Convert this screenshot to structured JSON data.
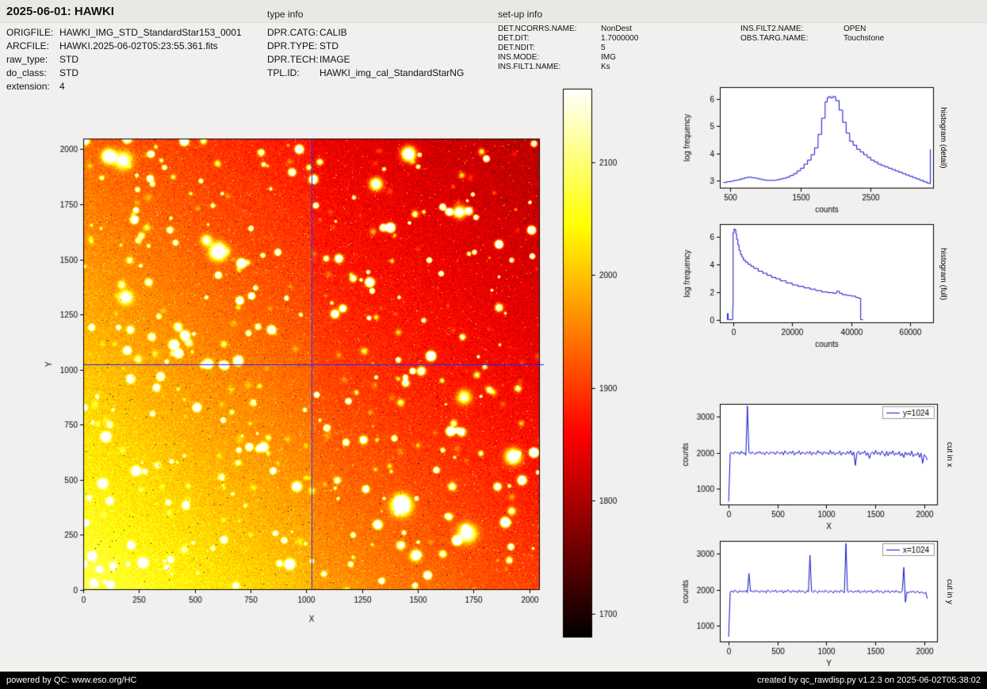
{
  "header": {
    "title": "2025-06-01: HAWKI",
    "type_info_label": "type info",
    "setup_info_label": "set-up info"
  },
  "file_info": {
    "rows": [
      {
        "label": "ORIGFILE:",
        "value": "HAWKI_IMG_STD_StandardStar153_0001"
      },
      {
        "label": "ARCFILE:",
        "value": "HAWKI.2025-06-02T05:23:55.361.fits"
      },
      {
        "label": "raw_type:",
        "value": "STD"
      },
      {
        "label": "do_class:",
        "value": "STD"
      },
      {
        "label": "extension:",
        "value": "4"
      }
    ]
  },
  "type_info": {
    "rows": [
      {
        "label": "DPR.CATG:",
        "value": "CALIB"
      },
      {
        "label": "DPR.TYPE:",
        "value": "STD"
      },
      {
        "label": "DPR.TECH:",
        "value": "IMAGE"
      },
      {
        "label": "TPL.ID:",
        "value": "HAWKI_img_cal_StandardStarNG"
      }
    ]
  },
  "setup_info": {
    "col1": [
      {
        "label": "DET.NCORRS.NAME:",
        "value": "NonDest"
      },
      {
        "label": "DET.DIT:",
        "value": "1.7000000"
      },
      {
        "label": "DET.NDIT:",
        "value": "5"
      },
      {
        "label": "INS.MODE:",
        "value": "IMG"
      },
      {
        "label": "INS.FILT1.NAME:",
        "value": "Ks"
      }
    ],
    "col2": [
      {
        "label": "INS.FILT2.NAME:",
        "value": "OPEN"
      },
      {
        "label": "OBS.TARG.NAME:",
        "value": "Touchstone"
      }
    ]
  },
  "footer": {
    "left": "powered by QC: www.eso.org/HC",
    "right": "created by qc_rawdisp.py v1.2.3 on 2025-06-02T05:38:02"
  },
  "chart_data": [
    {
      "id": "main_image",
      "type": "heatmap",
      "xlabel": "X",
      "ylabel": "Y",
      "xlim": [
        0,
        2048
      ],
      "ylim": [
        0,
        2048
      ],
      "xticks": [
        0,
        250,
        500,
        750,
        1000,
        1250,
        1500,
        1750,
        2000
      ],
      "yticks": [
        0,
        250,
        500,
        750,
        1000,
        1250,
        1500,
        1750,
        2000
      ],
      "colormap": "hot",
      "value_range": [
        1679,
        2165
      ],
      "colorbar": {
        "ticks": [
          2100,
          2000,
          1900,
          1800,
          1700
        ]
      },
      "crosshair": {
        "x": 1024,
        "y": 1024,
        "color": "#2222ff"
      },
      "description": "HAWKI raw standard-star frame (extension 4): dense star field, background bright (~2080 counts, yellow-white) toward lower-left, darker (~1830 counts, deep red) toward upper-right, with saturated white stars and scattered dark bad pixels",
      "appearance": {
        "base_low": 1830,
        "base_amp": 250,
        "noise": 30,
        "stars": 430,
        "big_stars": 14,
        "seed": 7
      }
    },
    {
      "id": "hist_detail",
      "type": "line",
      "step": true,
      "xlabel": "counts",
      "ylabel": "log frequency",
      "side_label": "histogram (detail)",
      "xlim": [
        350,
        3400
      ],
      "ylim": [
        2.7,
        6.45
      ],
      "xticks": [
        500,
        1500,
        2500
      ],
      "yticks": [
        3,
        4,
        5,
        6
      ],
      "series": [
        {
          "name": "histogram (detail)",
          "color": "#1111cc",
          "x": [
            400,
            450,
            500,
            550,
            600,
            650,
            700,
            750,
            800,
            850,
            900,
            950,
            1000,
            1050,
            1100,
            1150,
            1200,
            1250,
            1300,
            1350,
            1400,
            1450,
            1500,
            1550,
            1600,
            1650,
            1700,
            1750,
            1800,
            1850,
            1880,
            1900,
            1930,
            1960,
            2000,
            2050,
            2100,
            2150,
            2200,
            2250,
            2300,
            2350,
            2400,
            2450,
            2500,
            2550,
            2600,
            2650,
            2700,
            2750,
            2800,
            2850,
            2900,
            2950,
            3000,
            3050,
            3100,
            3150,
            3200,
            3250,
            3300,
            3335,
            3350
          ],
          "y": [
            2.92,
            2.95,
            2.97,
            3.0,
            3.02,
            3.06,
            3.1,
            3.12,
            3.1,
            3.08,
            3.05,
            3.02,
            3.0,
            3.0,
            3.0,
            3.02,
            3.05,
            3.08,
            3.12,
            3.18,
            3.25,
            3.35,
            3.45,
            3.6,
            3.75,
            3.95,
            4.2,
            4.7,
            5.3,
            5.9,
            6.05,
            6.1,
            6.05,
            6.1,
            5.95,
            5.6,
            5.15,
            4.75,
            4.45,
            4.3,
            4.15,
            4.05,
            3.95,
            3.85,
            3.75,
            3.68,
            3.6,
            3.55,
            3.5,
            3.45,
            3.4,
            3.35,
            3.3,
            3.25,
            3.2,
            3.15,
            3.1,
            3.05,
            3.0,
            2.95,
            2.9,
            2.88,
            4.15
          ]
        }
      ]
    },
    {
      "id": "hist_full",
      "type": "line",
      "step": true,
      "xlabel": "counts",
      "ylabel": "log frequency",
      "side_label": "histogram (full)",
      "xlim": [
        -4500,
        68000
      ],
      "ylim": [
        -0.25,
        6.9
      ],
      "xticks": [
        0,
        20000,
        40000,
        60000
      ],
      "yticks": [
        0,
        2,
        4,
        6
      ],
      "series": [
        {
          "name": "histogram (full)",
          "color": "#1111cc",
          "x": [
            -2100,
            -1900,
            -1700,
            -300,
            -150,
            0,
            300,
            600,
            900,
            1200,
            1600,
            2000,
            2500,
            3000,
            3500,
            4200,
            5000,
            6000,
            7000,
            8500,
            10000,
            11500,
            13000,
            14500,
            16000,
            18000,
            20000,
            22000,
            24000,
            26000,
            28000,
            30000,
            32000,
            34000,
            35000,
            36000,
            37000,
            38500,
            40000,
            41500,
            42500,
            43200,
            44000
          ],
          "y": [
            0,
            0.45,
            0,
            0,
            0.9,
            6.3,
            6.55,
            6.5,
            6.2,
            5.8,
            5.4,
            5.0,
            4.7,
            4.5,
            4.3,
            4.15,
            4.0,
            3.85,
            3.7,
            3.5,
            3.35,
            3.2,
            3.05,
            2.95,
            2.8,
            2.65,
            2.5,
            2.4,
            2.3,
            2.2,
            2.1,
            2.0,
            1.95,
            1.9,
            2.05,
            1.9,
            1.8,
            1.75,
            1.7,
            1.6,
            1.55,
            0,
            0
          ]
        }
      ]
    },
    {
      "id": "cut_x",
      "type": "line",
      "step": false,
      "xlabel": "X",
      "ylabel": "counts",
      "side_label": "cut in x",
      "legend": "y=1024",
      "xlim": [
        -90,
        2140
      ],
      "ylim": [
        550,
        3350
      ],
      "xticks": [
        0,
        500,
        1000,
        1500,
        2000
      ],
      "yticks": [
        1000,
        2000,
        3000
      ],
      "series": [
        {
          "name": "y=1024",
          "color": "#1111cc",
          "x_start": 0,
          "x_step": 16,
          "values": [
            650,
            1985,
            2010,
            1962,
            2035,
            1990,
            2018,
            1955,
            2042,
            1978,
            2005,
            1930,
            3290,
            2015,
            1968,
            2028,
            1992,
            1950,
            2020,
            1985,
            2040,
            1972,
            2008,
            1945,
            2025,
            1998,
            1960,
            2032,
            1988,
            2012,
            1952,
            2038,
            1995,
            1970,
            2022,
            1942,
            2060,
            1990,
            1965,
            2030,
            1978,
            2048,
            1935,
            2005,
            1982,
            2055,
            1948,
            2018,
            1995,
            1962,
            2028,
            1975,
            2042,
            1938,
            2010,
            1985,
            1958,
            2065,
            1992,
            2020,
            1945,
            2035,
            1980,
            2008,
            1952,
            2070,
            1965,
            2025,
            1940,
            2000,
            1975,
            2045,
            1930,
            2015,
            1988,
            1955,
            2038,
            1970,
            2060,
            1935,
            2022,
            1650,
            1995,
            2042,
            1948,
            2012,
            1978,
            2052,
            1925,
            2005,
            1840,
            1990,
            2030,
            1945,
            2068,
            1958,
            2018,
            1935,
            2048,
            1982,
            1902,
            2040,
            1915,
            2025,
            1968,
            2055,
            1928,
            1995,
            1950,
            2035,
            1910,
            1985,
            1870,
            2020,
            1940,
            1998,
            1925,
            2045,
            1895,
            1960,
            1930,
            2010,
            1875,
            1992,
            1705,
            1945,
            1905,
            1800
          ]
        }
      ]
    },
    {
      "id": "cut_y",
      "type": "line",
      "step": false,
      "xlabel": "Y",
      "ylabel": "counts",
      "side_label": "cut in y",
      "legend": "x=1024",
      "xlim": [
        -90,
        2140
      ],
      "ylim": [
        550,
        3350
      ],
      "xticks": [
        0,
        500,
        1000,
        1500,
        2000
      ],
      "yticks": [
        1000,
        2000,
        3000
      ],
      "series": [
        {
          "name": "x=1024",
          "color": "#1111cc",
          "x_start": 0,
          "x_step": 16,
          "values": [
            700,
            1945,
            1970,
            1928,
            1995,
            1952,
            1918,
            1980,
            1942,
            1965,
            1935,
            1988,
            1920,
            2450,
            1958,
            1975,
            1930,
            1992,
            1948,
            1962,
            1925,
            1985,
            1940,
            1970,
            1915,
            1995,
            1955,
            1932,
            1978,
            1948,
            1990,
            1922,
            1968,
            1945,
            1985,
            1910,
            1975,
            1938,
            1998,
            1952,
            1928,
            1982,
            1945,
            1965,
            1920,
            1990,
            1935,
            1972,
            1948,
            1905,
            1978,
            1942,
            2950,
            1960,
            1925,
            1988,
            1950,
            1915,
            1980,
            1938,
            1968,
            1930,
            1992,
            1945,
            1922,
            1975,
            1952,
            1910,
            1985,
            1940,
            1962,
            1928,
            1995,
            1948,
            1918,
            3280,
            1955,
            1935,
            1982,
            1945,
            1925,
            1970,
            1938,
            1990,
            1915,
            1958,
            1942,
            1978,
            1920,
            1965,
            1948,
            1985,
            1912,
            1955,
            1935,
            1995,
            1928,
            1962,
            1945,
            1908,
            1975,
            1940,
            1982,
            1918,
            1952,
            1968,
            1925,
            1988,
            1935,
            1948,
            1920,
            1972,
            2620,
            1660,
            1945,
            1910,
            1958,
            1932,
            1970,
            1915,
            1942,
            1960,
            1905,
            1938,
            1925,
            1890,
            1935,
            1760
          ]
        }
      ]
    }
  ]
}
